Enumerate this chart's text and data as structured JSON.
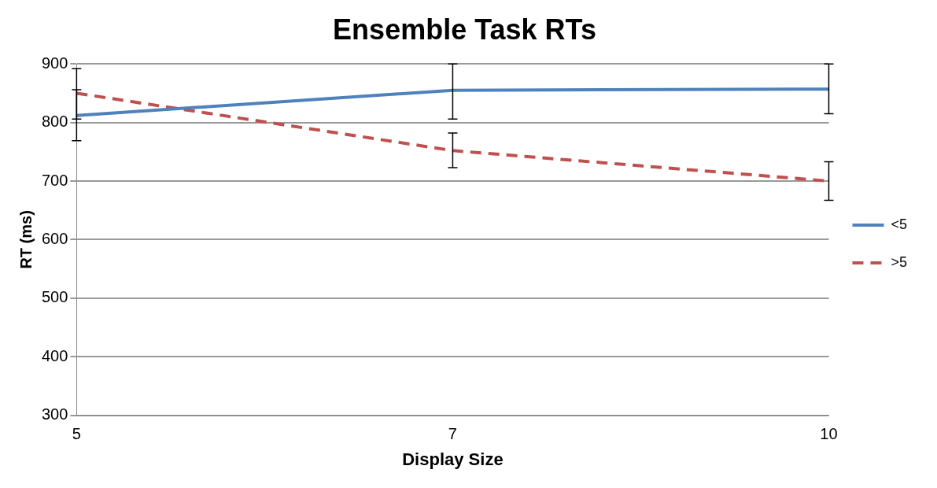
{
  "chart_data": {
    "type": "line",
    "title": "Ensemble Task RTs",
    "xlabel": "Display Size",
    "ylabel": "RT (ms)",
    "categories": [
      "5",
      "7",
      "10"
    ],
    "series": [
      {
        "name": "<5",
        "color": "#4f81bd",
        "values": [
          812,
          855,
          857
        ],
        "errors": [
          [
            769,
            856
          ],
          [
            806,
            900
          ],
          [
            815,
            900
          ]
        ],
        "line_style": "solid"
      },
      {
        "name": ">5",
        "color": "#c0504d",
        "values": [
          850,
          752,
          700
        ],
        "errors": [
          [
            806,
            892
          ],
          [
            723,
            782
          ],
          [
            667,
            733
          ]
        ],
        "line_style": "dashed"
      }
    ],
    "ylim": [
      300,
      900
    ],
    "yticks": [
      300,
      400,
      500,
      600,
      700,
      800,
      900
    ],
    "grid": "y",
    "legend": "right",
    "marker": "none"
  }
}
